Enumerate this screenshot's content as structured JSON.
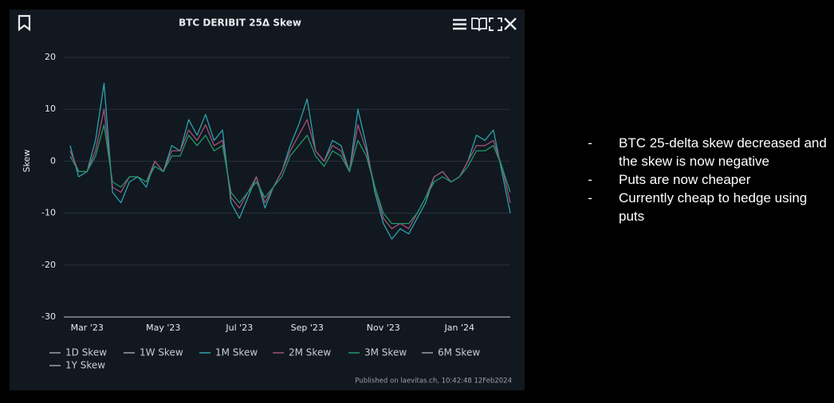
{
  "chart_data": {
    "type": "line",
    "title": "BTC DERIBIT 25Δ Skew",
    "ylabel": "Skew",
    "categories": [
      null,
      null,
      "Mar '23",
      null,
      null,
      null,
      null,
      null,
      null,
      null,
      null,
      "May '23",
      null,
      null,
      null,
      null,
      null,
      null,
      null,
      null,
      "Jul '23",
      null,
      null,
      null,
      null,
      null,
      null,
      null,
      "Sep '23",
      null,
      null,
      null,
      null,
      null,
      null,
      null,
      null,
      "Nov '23",
      null,
      null,
      null,
      null,
      null,
      null,
      null,
      null,
      "Jan '24",
      null,
      null,
      null,
      null,
      null,
      null
    ],
    "ylim": [
      -30,
      20
    ],
    "yticks": [
      20,
      10,
      0,
      -10,
      -20,
      -30
    ],
    "grid": true,
    "series": [
      {
        "name": "1D Skew",
        "color": "#9aa0a6",
        "visible": false
      },
      {
        "name": "1W Skew",
        "color": "#9aa0a6",
        "visible": false
      },
      {
        "name": "1M Skew",
        "color": "#2aa3aa",
        "visible": true,
        "values": [
          3,
          -3,
          -2,
          4,
          15,
          -6,
          -8,
          -4,
          -3,
          -5,
          0,
          -2,
          3,
          2,
          8,
          5,
          9,
          4,
          6,
          -8,
          -11,
          -7,
          -3,
          -9,
          -5,
          -2,
          3,
          7,
          12,
          2,
          0,
          4,
          3,
          -2,
          10,
          3,
          -6,
          -12,
          -15,
          -13,
          -14,
          -11,
          -8,
          -3,
          -2,
          -4,
          -3,
          0,
          5,
          4,
          6,
          -2,
          -10
        ]
      },
      {
        "name": "2M Skew",
        "color": "#a0527c",
        "visible": true,
        "values": [
          2,
          -2,
          -2,
          2,
          10,
          -5,
          -6,
          -3,
          -3,
          -4,
          0,
          -2,
          2,
          2,
          6,
          4,
          7,
          3,
          4,
          -7,
          -9,
          -6,
          -3,
          -8,
          -5,
          -2,
          2,
          5,
          8,
          2,
          0,
          3,
          2,
          -2,
          7,
          2,
          -5,
          -11,
          -13,
          -12,
          -13,
          -10,
          -7,
          -3,
          -2,
          -4,
          -3,
          0,
          3,
          3,
          4,
          -1,
          -8
        ]
      },
      {
        "name": "3M Skew",
        "color": "#1f9a68",
        "visible": true,
        "values": [
          1,
          -2,
          -2,
          1,
          7,
          -4,
          -5,
          -3,
          -3,
          -4,
          -1,
          -2,
          1,
          1,
          5,
          3,
          5,
          2,
          3,
          -6,
          -8,
          -6,
          -4,
          -7,
          -5,
          -3,
          1,
          3,
          5,
          1,
          -1,
          2,
          1,
          -2,
          4,
          1,
          -5,
          -10,
          -12,
          -12,
          -12,
          -10,
          -7,
          -4,
          -3,
          -4,
          -3,
          -1,
          2,
          2,
          3,
          -1,
          -6
        ]
      },
      {
        "name": "6M Skew",
        "color": "#9aa0a6",
        "visible": false
      },
      {
        "name": "1Y Skew",
        "color": "#9aa0a6",
        "visible": false
      }
    ],
    "footer": "Published on laevitas.ch, 10:42:48 12Feb2024"
  },
  "notes": [
    "BTC 25-delta skew decreased and the skew is now negative",
    "Puts are now cheaper",
    "Currently cheap to hedge using puts"
  ]
}
